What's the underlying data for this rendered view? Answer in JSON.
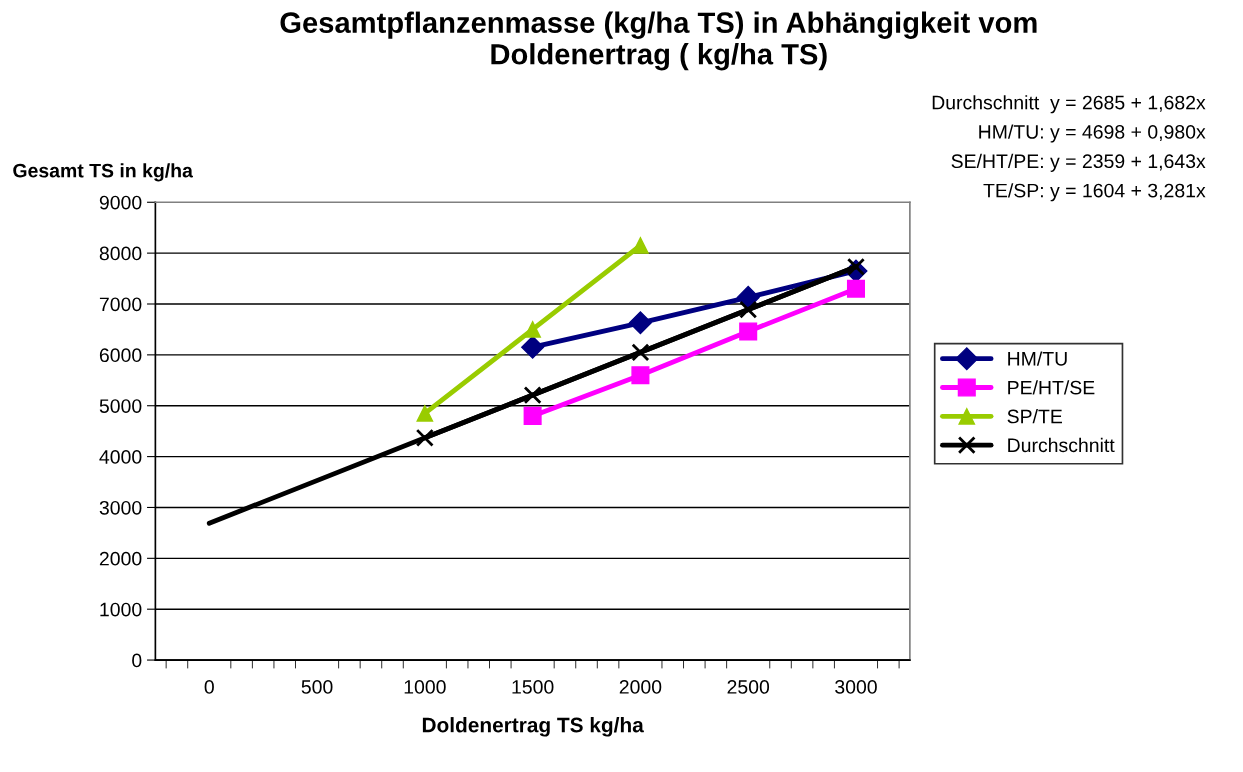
{
  "chart_data": {
    "type": "line",
    "title": "Gesamtpflanzenmasse (kg/ha TS) in Abhängigkeit vom\nDoldenertrag ( kg/ha TS)",
    "xlabel": "Doldenertrag TS kg/ha",
    "ylabel": "Gesamt TS in kg/ha",
    "categories": [
      "0",
      "500",
      "1000",
      "1500",
      "2000",
      "2500",
      "3000"
    ],
    "series": [
      {
        "name": "HM/TU",
        "color": "#000080",
        "marker": "diamond",
        "values": [
          null,
          null,
          null,
          6150,
          6630,
          7130,
          7650
        ]
      },
      {
        "name": "PE/HT/SE",
        "color": "#ff00ff",
        "marker": "square",
        "values": [
          null,
          null,
          null,
          4800,
          5600,
          6460,
          7300
        ]
      },
      {
        "name": "SP/TE",
        "color": "#99cc00",
        "marker": "triangle",
        "values": [
          null,
          null,
          4850,
          6500,
          8150,
          null,
          null
        ]
      },
      {
        "name": "Durchschnitt",
        "color": "#000000",
        "marker": "cross",
        "values": [
          null,
          null,
          4370,
          5210,
          6050,
          6890,
          7730
        ]
      },
      {
        "color": "#000000",
        "marker": "none",
        "values": [
          2690,
          null,
          null,
          null,
          null,
          null,
          7730
        ]
      }
    ],
    "ylim": [
      0,
      9000
    ],
    "yticks": [
      0,
      1000,
      2000,
      3000,
      4000,
      5000,
      6000,
      7000,
      8000,
      9000
    ],
    "grid": "y",
    "legend": "right",
    "annotations": [
      "Durchschnitt  y = 2685 + 1,682x",
      "HM/TU: y = 4698 + 0,980x",
      "SE/HT/PE: y = 2359 + 1,643x",
      "TE/SP: y = 1604 + 3,281x"
    ]
  }
}
